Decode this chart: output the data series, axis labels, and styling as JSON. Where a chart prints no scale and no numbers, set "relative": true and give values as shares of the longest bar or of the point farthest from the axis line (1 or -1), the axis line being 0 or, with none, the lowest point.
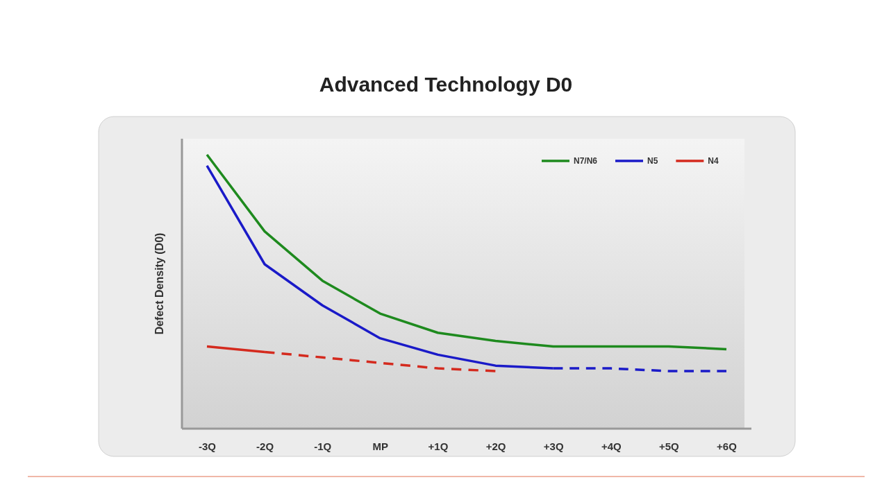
{
  "chart_data": {
    "type": "line",
    "title": "Advanced Technology D0",
    "ylabel": "Defect Density (D0)",
    "relative": true,
    "legend": "top right",
    "categories": [
      "-3Q",
      "-2Q",
      "-1Q",
      "MP",
      "+1Q",
      "+2Q",
      "+3Q",
      "+4Q",
      "+5Q",
      "+6Q"
    ],
    "series": [
      {
        "name": "N7/N6",
        "color": "#1e8a1e",
        "line_style": "solid",
        "values": [
          1,
          0.72,
          0.54,
          0.42,
          0.35,
          0.32,
          0.3,
          0.3,
          0.3,
          0.29
        ]
      },
      {
        "name": "N5",
        "color": "#1a1ac8",
        "line_style": "solid",
        "values": [
          0.96,
          0.6,
          0.45,
          0.33,
          0.27,
          0.23,
          0.22,
          null,
          null,
          null
        ]
      },
      {
        "color": "#1a1ac8",
        "line_style": "dashed",
        "values": [
          null,
          null,
          null,
          null,
          null,
          null,
          0.22,
          0.22,
          0.21,
          0.21
        ]
      },
      {
        "name": "N4",
        "color": "#d42a1e",
        "line_style": "solid",
        "values": [
          0.3,
          0.28,
          null,
          null,
          null,
          null,
          null,
          null,
          null,
          null
        ]
      },
      {
        "color": "#d42a1e",
        "line_style": "dashed",
        "values": [
          null,
          0.28,
          0.26,
          0.24,
          0.22,
          0.21,
          null,
          null,
          null,
          null
        ]
      }
    ]
  }
}
